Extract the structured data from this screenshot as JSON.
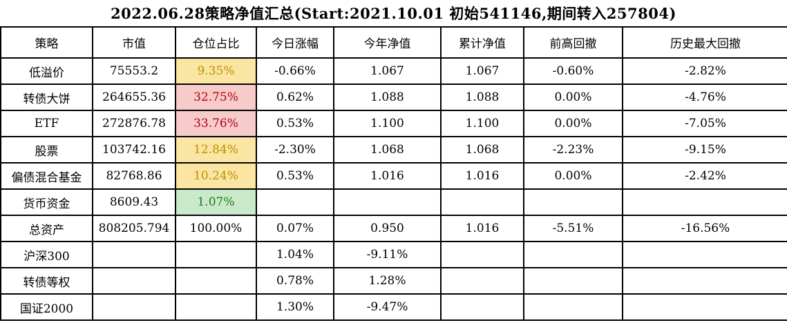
{
  "title": "2022.06.28策略净值汇总(Start:2021.10.01 初始541146,期间转入257804)",
  "table": {
    "columns": [
      {
        "key": "strategy",
        "label": "策略"
      },
      {
        "key": "market-value",
        "label": "市值"
      },
      {
        "key": "position-ratio",
        "label": "仓位占比"
      },
      {
        "key": "today-change",
        "label": "今日涨幅"
      },
      {
        "key": "ytd-nav",
        "label": "今年净值"
      },
      {
        "key": "cum-nav",
        "label": "累计净值"
      },
      {
        "key": "high-drawdown",
        "label": "前高回撤"
      },
      {
        "key": "max-drawdown",
        "label": "历史最大回撤"
      }
    ],
    "rows": [
      {
        "cells": [
          "低溢价",
          "75553.2",
          "9.35%",
          "-0.66%",
          "1.067",
          "1.067",
          "-0.60%",
          "-2.82%"
        ],
        "position_color": "yellow"
      },
      {
        "cells": [
          "转债大饼",
          "264655.36",
          "32.75%",
          "0.62%",
          "1.088",
          "1.088",
          "0.00%",
          "-4.76%"
        ],
        "position_color": "red"
      },
      {
        "cells": [
          "ETF",
          "272876.78",
          "33.76%",
          "0.53%",
          "1.100",
          "1.100",
          "0.00%",
          "-7.05%"
        ],
        "position_color": "red"
      },
      {
        "cells": [
          "股票",
          "103742.16",
          "12.84%",
          "-2.30%",
          "1.068",
          "1.068",
          "-2.23%",
          "-9.15%"
        ],
        "position_color": "yellow"
      },
      {
        "cells": [
          "偏债混合基金",
          "82768.86",
          "10.24%",
          "0.53%",
          "1.016",
          "1.016",
          "0.00%",
          "-2.42%"
        ],
        "position_color": "yellow"
      },
      {
        "cells": [
          "货币资金",
          "8609.43",
          "1.07%",
          "",
          "",
          "",
          "",
          ""
        ],
        "position_color": "green"
      },
      {
        "cells": [
          "总资产",
          "808205.794",
          "100.00%",
          "0.07%",
          "0.950",
          "1.016",
          "-5.51%",
          "-16.56%"
        ],
        "position_color": "none"
      },
      {
        "cells": [
          "沪深300",
          "",
          "",
          "1.04%",
          "-9.11%",
          "",
          "",
          ""
        ],
        "position_color": "none"
      },
      {
        "cells": [
          "转债等权",
          "",
          "",
          "0.78%",
          "1.28%",
          "",
          "",
          ""
        ],
        "position_color": "none"
      },
      {
        "cells": [
          "国证2000",
          "",
          "",
          "1.30%",
          "-9.47%",
          "",
          "",
          ""
        ],
        "position_color": "none"
      }
    ]
  },
  "colors": {
    "position_yellow_bg": "#FAE5A2",
    "position_yellow_text": "#BF8F00",
    "position_red_bg": "#F8CBCB",
    "position_red_text": "#B00014",
    "position_green_bg": "#C9E9C8",
    "position_green_text": "#1E7B1E",
    "grid_border": "#000000",
    "background": "#FFFFFF"
  }
}
